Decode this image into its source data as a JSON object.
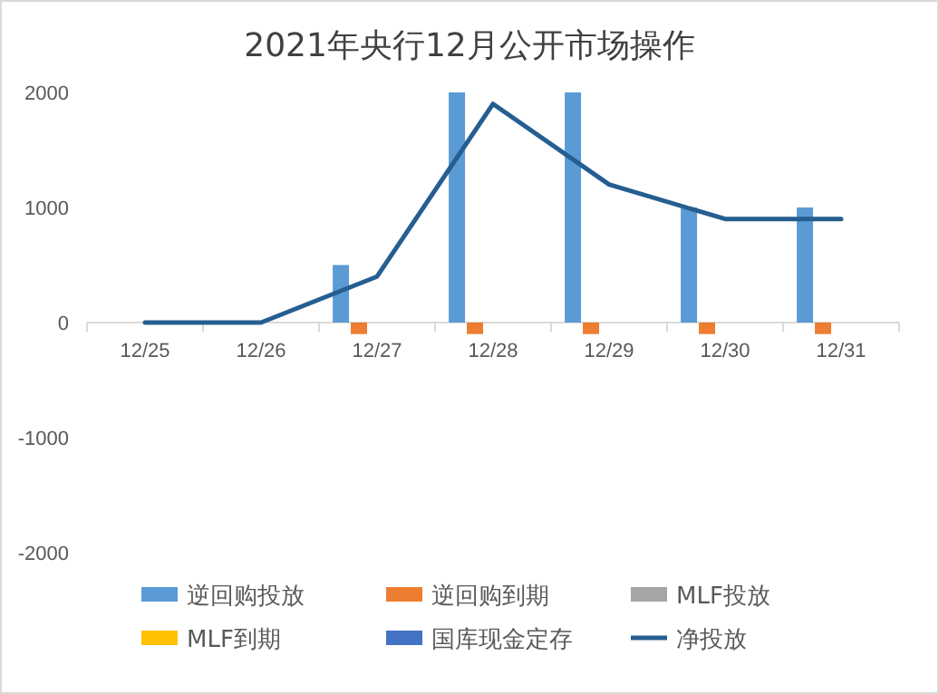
{
  "chart_data": {
    "type": "bar",
    "title": "2021年央行12月公开市场操作",
    "categories": [
      "12/25",
      "12/26",
      "12/27",
      "12/28",
      "12/29",
      "12/30",
      "12/31"
    ],
    "series": [
      {
        "name": "逆回购投放",
        "color": "#5b9bd5",
        "values": [
          0,
          0,
          500,
          2000,
          2000,
          1000,
          1000
        ]
      },
      {
        "name": "逆回购到期",
        "color": "#ed7d31",
        "values": [
          0,
          0,
          -100,
          -100,
          -100,
          -100,
          -100
        ]
      },
      {
        "name": "MLF投放",
        "color": "#a5a5a5",
        "values": [
          0,
          0,
          0,
          0,
          0,
          0,
          0
        ]
      },
      {
        "name": "MLF到期",
        "color": "#ffc000",
        "values": [
          0,
          0,
          0,
          0,
          0,
          0,
          0
        ]
      },
      {
        "name": "国库现金定存",
        "color": "#4472c4",
        "values": [
          0,
          0,
          0,
          0,
          0,
          0,
          0
        ]
      },
      {
        "name": "净投放",
        "color": "#255e91",
        "type": "line",
        "values": [
          0,
          0,
          400,
          1900,
          1200,
          900,
          900
        ]
      }
    ],
    "ylim": [
      -2000,
      2000
    ],
    "yticks": [
      -2000,
      -1000,
      0,
      1000,
      2000
    ],
    "legend": "bottom"
  }
}
